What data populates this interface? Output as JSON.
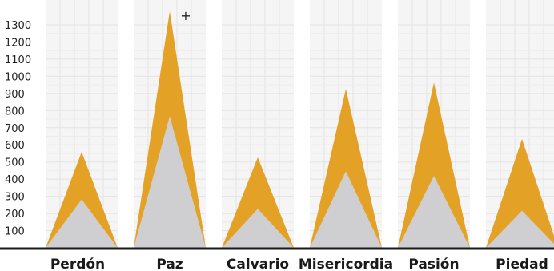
{
  "chart_data": {
    "type": "area",
    "title": "",
    "xlabel": "",
    "ylabel": "",
    "categories": [
      "Perdón",
      "Paz",
      "Calvario",
      "Misericordia",
      "Pasión",
      "Piedad"
    ],
    "series": [
      {
        "values": [
          282,
          767,
          227,
          446,
          419,
          216
        ]
      },
      {
        "values": [
          559,
          1379,
          527,
          927,
          964,
          634
        ]
      }
    ],
    "yticks": [
      100,
      200,
      300,
      400,
      500,
      600,
      700,
      800,
      900,
      1000,
      1100,
      1200,
      1300
    ],
    "ylim": [
      0,
      1380
    ],
    "grid": true,
    "colors": {
      "series_0": "#cfcfd1",
      "series_1": "#e3a126",
      "panel_bg": "#f5f5f5",
      "grid": "#e3e3e3",
      "baseline": "#1a1a1a"
    }
  },
  "cursor_glyph": "+"
}
